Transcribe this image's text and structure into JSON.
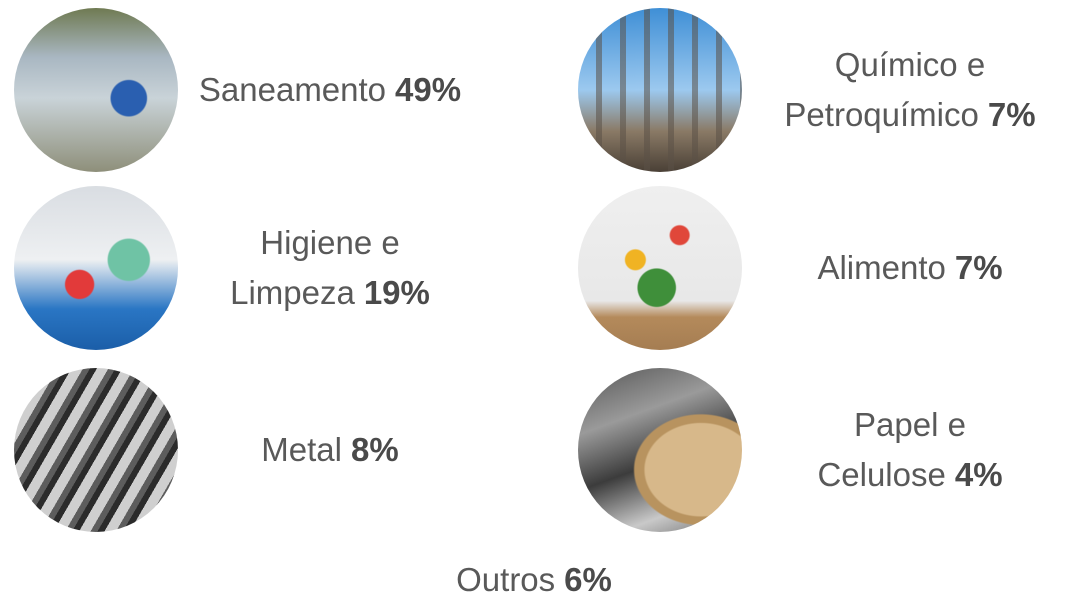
{
  "items": [
    {
      "lines": [
        "Saneamento"
      ],
      "value": "49%"
    },
    {
      "lines": [
        "Químico e",
        "Petroquímico"
      ],
      "value": "7%"
    },
    {
      "lines": [
        "Higiene e",
        "Limpeza"
      ],
      "value": "19%"
    },
    {
      "lines": [
        "Alimento"
      ],
      "value": "7%"
    },
    {
      "lines": [
        "Metal"
      ],
      "value": "8%"
    },
    {
      "lines": [
        "Papel e",
        "Celulose"
      ],
      "value": "4%"
    }
  ],
  "footer": {
    "lines": [
      "Outros"
    ],
    "value": "6%"
  }
}
